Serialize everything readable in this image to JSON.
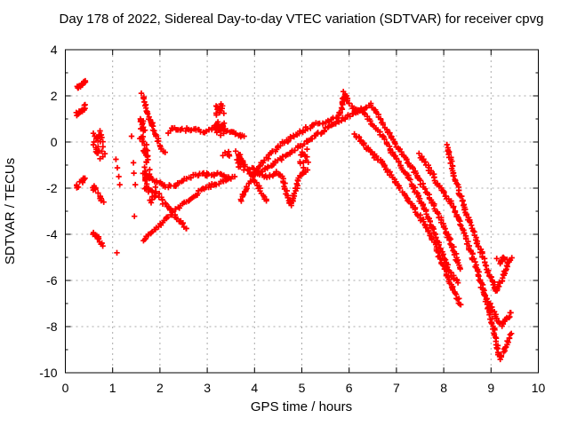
{
  "figure": {
    "background": "#ffffff"
  },
  "chart_data": {
    "type": "scatter",
    "title": "Day 178 of 2022, Sidereal Day-to-day VTEC variation (SDTVAR) for receiver cpvg",
    "xlabel": "GPS time / hours",
    "ylabel": "SDTVAR / TECUs",
    "xlim": [
      0,
      10
    ],
    "ylim": [
      -10,
      4
    ],
    "grid": true,
    "legend": null,
    "marker_symbol": "plus",
    "colors": {
      "marker": "#ff0000",
      "grid": "#aaaaaa",
      "axis": "#000000",
      "text": "#000000",
      "background": "#ffffff"
    },
    "x_axis": {
      "label": "GPS time / hours",
      "min": 0,
      "max": 10,
      "major_ticks": [
        0,
        1,
        2,
        3,
        4,
        5,
        6,
        7,
        8,
        9,
        10
      ],
      "minor_ticks": []
    },
    "y_axis": {
      "label": "SDTVAR / TECUs",
      "min": -10,
      "max": 4,
      "major_ticks": [
        4,
        2,
        0,
        -2,
        -4,
        -6,
        -8,
        -10
      ],
      "minor_ticks": [
        3,
        1,
        -1,
        -3,
        -5,
        -7,
        -9
      ]
    },
    "traces": [
      {
        "name": "steep-descent-1.7h",
        "pts": [
          [
            1.63,
            2.05
          ],
          [
            1.7,
            1.55
          ],
          [
            1.78,
            1.05
          ],
          [
            1.87,
            0.55
          ],
          [
            1.96,
            0.05
          ],
          [
            2.04,
            -0.3
          ],
          [
            2.11,
            -0.45
          ]
        ]
      },
      {
        "name": "upper-band-2-3.8h",
        "pts": [
          [
            2.17,
            0.45
          ],
          [
            2.3,
            0.62
          ],
          [
            2.45,
            0.5
          ],
          [
            2.6,
            0.55
          ],
          [
            2.75,
            0.62
          ],
          [
            2.9,
            0.45
          ],
          [
            3.05,
            0.55
          ],
          [
            3.18,
            0.68
          ],
          [
            3.3,
            0.52
          ],
          [
            3.5,
            0.45
          ],
          [
            3.65,
            0.32
          ],
          [
            3.78,
            0.25
          ]
        ]
      },
      {
        "name": "lower-band-1.7-3.5h",
        "pts": [
          [
            1.74,
            -1.42
          ],
          [
            1.94,
            -1.73
          ],
          [
            2.13,
            -1.92
          ],
          [
            2.32,
            -1.85
          ],
          [
            2.51,
            -1.62
          ],
          [
            2.69,
            -1.47
          ],
          [
            2.88,
            -1.35
          ],
          [
            3.07,
            -1.47
          ],
          [
            3.26,
            -1.36
          ],
          [
            3.45,
            -1.52
          ]
        ]
      },
      {
        "name": "x-cross-descent-2.2h",
        "pts": [
          [
            1.97,
            -2.3
          ],
          [
            2.1,
            -2.68
          ],
          [
            2.25,
            -3.05
          ],
          [
            2.4,
            -3.38
          ],
          [
            2.56,
            -3.75
          ]
        ]
      },
      {
        "name": "x-cross-ascent-1.6-3.6h",
        "pts": [
          [
            1.64,
            -4.25
          ],
          [
            1.85,
            -3.85
          ],
          [
            2.0,
            -3.6
          ],
          [
            2.18,
            -3.2
          ],
          [
            2.32,
            -2.95
          ],
          [
            2.5,
            -2.65
          ],
          [
            2.68,
            -2.4
          ],
          [
            2.86,
            -2.1
          ],
          [
            3.05,
            -1.92
          ],
          [
            3.25,
            -1.75
          ],
          [
            3.45,
            -1.62
          ],
          [
            3.58,
            -1.5
          ]
        ]
      },
      {
        "name": "mid-descent-3.6-4.3h",
        "pts": [
          [
            3.62,
            -0.42
          ],
          [
            3.78,
            -0.95
          ],
          [
            3.94,
            -1.45
          ],
          [
            4.1,
            -2.0
          ],
          [
            4.25,
            -2.55
          ]
        ]
      },
      {
        "name": "main-arc-3.7-8.3h",
        "pts": [
          [
            3.7,
            -2.5
          ],
          [
            3.9,
            -1.7
          ],
          [
            4.1,
            -1.05
          ],
          [
            4.35,
            -0.5
          ],
          [
            4.6,
            -0.05
          ],
          [
            4.9,
            0.35
          ],
          [
            5.2,
            0.7
          ],
          [
            5.5,
            0.9
          ],
          [
            5.75,
            1.02
          ],
          [
            5.85,
            1.55
          ],
          [
            5.9,
            2.12
          ],
          [
            5.98,
            1.75
          ],
          [
            6.08,
            1.45
          ],
          [
            6.3,
            1.25
          ],
          [
            6.5,
            0.78
          ],
          [
            6.7,
            0.3
          ],
          [
            6.9,
            -0.4
          ],
          [
            7.1,
            -1.02
          ],
          [
            7.3,
            -1.7
          ],
          [
            7.5,
            -2.5
          ],
          [
            7.7,
            -3.4
          ],
          [
            7.85,
            -4.2
          ],
          [
            8.0,
            -5.0
          ],
          [
            8.15,
            -5.7
          ],
          [
            8.3,
            -6.1
          ]
        ]
      },
      {
        "name": "second-diagonal-4-8.4h",
        "pts": [
          [
            4.05,
            -1.42
          ],
          [
            4.3,
            -1.06
          ],
          [
            4.55,
            -0.72
          ],
          [
            4.8,
            -0.4
          ],
          [
            5.05,
            -0.06
          ],
          [
            5.3,
            0.28
          ],
          [
            5.55,
            0.6
          ],
          [
            5.8,
            0.92
          ],
          [
            6.05,
            1.2
          ],
          [
            6.28,
            1.45
          ],
          [
            6.45,
            1.62
          ],
          [
            6.62,
            1.15
          ],
          [
            6.78,
            0.6
          ],
          [
            6.95,
            0.0
          ],
          [
            7.2,
            -0.75
          ],
          [
            7.45,
            -1.5
          ],
          [
            7.7,
            -2.4
          ],
          [
            7.9,
            -3.2
          ],
          [
            8.05,
            -3.9
          ],
          [
            8.2,
            -4.6
          ],
          [
            8.35,
            -5.5
          ]
        ]
      },
      {
        "name": "third-descent-6.1-8.4h",
        "pts": [
          [
            6.12,
            0.35
          ],
          [
            6.3,
            -0.1
          ],
          [
            6.5,
            -0.5
          ],
          [
            6.68,
            -0.9
          ],
          [
            6.85,
            -1.35
          ],
          [
            7.03,
            -1.85
          ],
          [
            7.2,
            -2.35
          ],
          [
            7.38,
            -2.9
          ],
          [
            7.55,
            -3.4
          ],
          [
            7.7,
            -3.95
          ],
          [
            7.85,
            -4.6
          ],
          [
            7.95,
            -5.2
          ],
          [
            8.1,
            -5.95
          ],
          [
            8.25,
            -6.65
          ],
          [
            8.36,
            -7.05
          ]
        ]
      },
      {
        "name": "late-descent-deep-v",
        "pts": [
          [
            7.49,
            -0.55
          ],
          [
            7.7,
            -1.2
          ],
          [
            7.9,
            -1.9
          ],
          [
            8.08,
            -2.45
          ],
          [
            8.18,
            -2.72
          ],
          [
            8.35,
            -3.5
          ],
          [
            8.52,
            -4.45
          ],
          [
            8.68,
            -5.35
          ],
          [
            8.83,
            -6.4
          ],
          [
            8.97,
            -7.4
          ],
          [
            9.08,
            -8.35
          ],
          [
            9.18,
            -9.38
          ],
          [
            9.27,
            -9.1
          ],
          [
            9.36,
            -8.68
          ],
          [
            9.43,
            -8.3
          ]
        ]
      },
      {
        "name": "hook-descent-checkmark",
        "pts": [
          [
            8.07,
            -0.15
          ],
          [
            8.15,
            -0.8
          ],
          [
            8.22,
            -1.45
          ],
          [
            8.32,
            -2.1
          ],
          [
            8.45,
            -2.9
          ],
          [
            8.58,
            -3.6
          ],
          [
            8.72,
            -4.4
          ],
          [
            8.85,
            -5.1
          ],
          [
            8.95,
            -5.7
          ],
          [
            9.05,
            -6.15
          ],
          [
            9.12,
            -6.45
          ],
          [
            9.2,
            -6.1
          ],
          [
            9.28,
            -5.65
          ],
          [
            9.36,
            -5.28
          ],
          [
            9.44,
            -5.02
          ]
        ]
      },
      {
        "name": "short-v-9.2h",
        "pts": [
          [
            8.8,
            -6.3
          ],
          [
            8.95,
            -6.95
          ],
          [
            9.1,
            -7.55
          ],
          [
            9.22,
            -7.95
          ],
          [
            9.33,
            -7.68
          ],
          [
            9.42,
            -7.4
          ]
        ]
      },
      {
        "name": "band-with-dip-4.8h",
        "pts": [
          [
            3.9,
            -1.12
          ],
          [
            4.1,
            -1.35
          ],
          [
            4.28,
            -1.55
          ],
          [
            4.42,
            -1.32
          ],
          [
            4.55,
            -1.4
          ],
          [
            4.63,
            -1.85
          ],
          [
            4.7,
            -2.35
          ],
          [
            4.76,
            -2.78
          ],
          [
            4.83,
            -2.35
          ],
          [
            4.9,
            -1.85
          ],
          [
            4.97,
            -1.45
          ],
          [
            5.08,
            -1.3
          ]
        ]
      }
    ],
    "clusters": [
      {
        "name": "c-0.35-2.5",
        "cx": 0.35,
        "cy": 2.52,
        "sx": 0.1,
        "sy": 0.1,
        "slope": 1.8,
        "n": 14
      },
      {
        "name": "c-0.33-1.35",
        "cx": 0.33,
        "cy": 1.35,
        "sx": 0.1,
        "sy": 0.12,
        "slope": 1.8,
        "n": 16
      },
      {
        "name": "c-0.70-0.2",
        "cx": 0.7,
        "cy": 0.22,
        "sx": 0.11,
        "sy": 0.3,
        "slope": 0.5,
        "n": 14
      },
      {
        "name": "c-0.74--0.45",
        "cx": 0.74,
        "cy": -0.45,
        "sx": 0.1,
        "sy": 0.28,
        "slope": 0.0,
        "n": 12
      },
      {
        "name": "c-0.33--1.75",
        "cx": 0.33,
        "cy": -1.75,
        "sx": 0.1,
        "sy": 0.12,
        "slope": 1.5,
        "n": 14
      },
      {
        "name": "c-0.70--2.3",
        "cx": 0.7,
        "cy": -2.28,
        "sx": 0.13,
        "sy": 0.12,
        "slope": -2.8,
        "n": 14
      },
      {
        "name": "c-0.70--4.2",
        "cx": 0.7,
        "cy": -4.22,
        "sx": 0.13,
        "sy": 0.12,
        "slope": -2.8,
        "n": 14
      },
      {
        "name": "c-1.63-0.55",
        "cx": 1.63,
        "cy": 0.55,
        "sx": 0.06,
        "sy": 0.55,
        "slope": 0.0,
        "n": 20
      },
      {
        "name": "c-1.70--0.5",
        "cx": 1.7,
        "cy": -0.5,
        "sx": 0.06,
        "sy": 0.5,
        "slope": 0.0,
        "n": 16
      },
      {
        "name": "c-1.72--1.55",
        "cx": 1.72,
        "cy": -1.55,
        "sx": 0.08,
        "sy": 0.48,
        "slope": 0.0,
        "n": 20
      },
      {
        "name": "c-1.84--2.3",
        "cx": 1.84,
        "cy": -2.3,
        "sx": 0.09,
        "sy": 0.38,
        "slope": 0.0,
        "n": 16
      },
      {
        "name": "c-3.27-1.0",
        "cx": 3.27,
        "cy": 1.0,
        "sx": 0.1,
        "sy": 0.72,
        "slope": 0.0,
        "n": 30
      },
      {
        "name": "c-3.40--0.5",
        "cx": 3.4,
        "cy": -0.5,
        "sx": 0.07,
        "sy": 0.17,
        "slope": 0.0,
        "n": 7
      },
      {
        "name": "c-3.68--0.85",
        "cx": 3.68,
        "cy": -0.85,
        "sx": 0.1,
        "sy": 0.3,
        "slope": -1.0,
        "n": 14
      },
      {
        "name": "c-5.05--0.75",
        "cx": 5.05,
        "cy": -0.75,
        "sx": 0.09,
        "sy": 0.5,
        "slope": 0.0,
        "n": 18
      },
      {
        "name": "c-9.25--5.1",
        "cx": 9.25,
        "cy": -5.12,
        "sx": 0.15,
        "sy": 0.16,
        "slope": 0.0,
        "n": 12
      }
    ],
    "singles": [
      [
        1.4,
        0.25
      ],
      [
        1.44,
        -0.9
      ],
      [
        1.45,
        -1.35
      ],
      [
        1.48,
        -1.85
      ],
      [
        1.46,
        -3.22
      ],
      [
        1.07,
        -0.75
      ],
      [
        1.1,
        -1.12
      ],
      [
        1.13,
        -1.5
      ],
      [
        1.15,
        -1.85
      ],
      [
        1.09,
        -4.8
      ]
    ]
  }
}
